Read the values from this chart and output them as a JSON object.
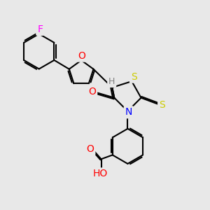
{
  "bg_color": "#e8e8e8",
  "bond_color": "#000000",
  "bond_width": 1.5,
  "atom_colors": {
    "O": "#ff0000",
    "N": "#0000ff",
    "S": "#cccc00",
    "F": "#ff00ff",
    "H": "#808080",
    "C": "#000000"
  },
  "font_size": 9
}
